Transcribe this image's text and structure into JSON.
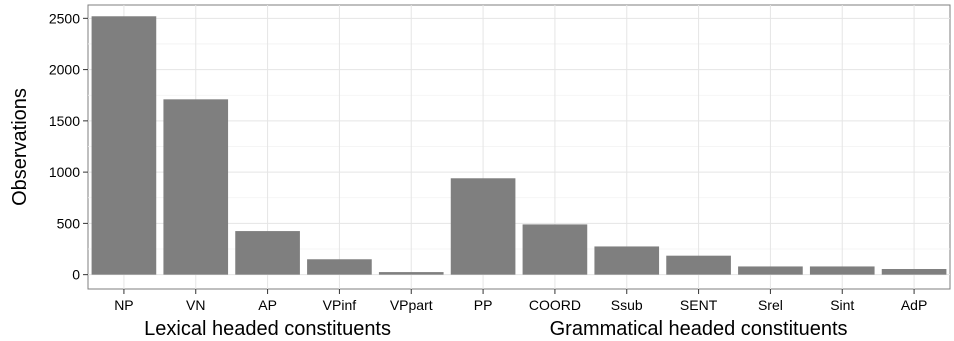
{
  "chart_data": {
    "type": "bar",
    "title": "",
    "xlabel": "",
    "ylabel": "Observations",
    "ylim": [
      -140,
      2630
    ],
    "yticks": [
      0,
      500,
      1000,
      1500,
      2000,
      2500
    ],
    "grid": true,
    "bar_color": "#7f7f7f",
    "categories": [
      "NP",
      "VN",
      "AP",
      "VPinf",
      "VPpart",
      "PP",
      "COORD",
      "Ssub",
      "SENT",
      "Srel",
      "Sint",
      "AdP"
    ],
    "values": [
      2520,
      1710,
      425,
      150,
      25,
      940,
      490,
      275,
      185,
      80,
      80,
      55
    ],
    "groups": [
      {
        "label": "Lexical headed constituents",
        "from": 0,
        "to": 4
      },
      {
        "label": "Grammatical headed constituents",
        "from": 5,
        "to": 11
      }
    ]
  }
}
